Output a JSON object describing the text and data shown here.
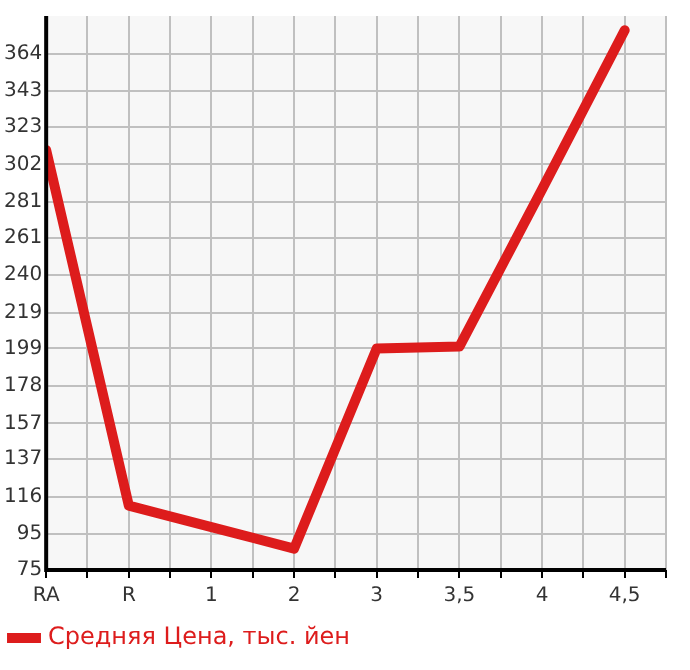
{
  "chart_data": {
    "type": "line",
    "categories": [
      "RA",
      "R",
      "1",
      "2",
      "3",
      "3,5",
      "4",
      "4,5"
    ],
    "series": [
      {
        "name": "Средняя Цена, тыс. йен",
        "color": "#dd1c1c",
        "values": [
          310,
          111,
          99,
          87,
          199,
          200,
          288,
          377
        ]
      }
    ],
    "ylim": [
      75,
      385
    ],
    "yticks": [
      75,
      95,
      116,
      137,
      157,
      178,
      199,
      219,
      240,
      261,
      281,
      302,
      323,
      343,
      364
    ],
    "grid": true,
    "legend": "bottom left",
    "marker": "none",
    "line_style": "solid"
  }
}
